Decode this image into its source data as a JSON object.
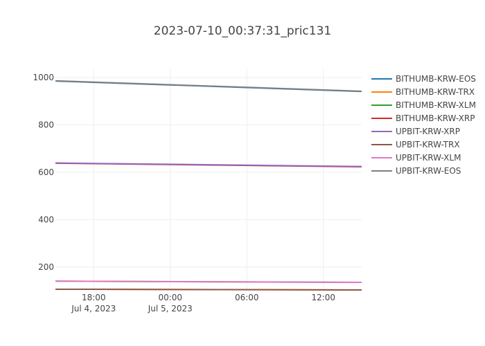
{
  "chart_data": {
    "type": "line",
    "title": "2023-07-10_00:37:31_pric131",
    "xlabel": "",
    "ylabel": "",
    "x_time": [
      "Jul 4, 2023 15:00",
      "Jul 5, 2023 15:00"
    ],
    "x_hours_range": [
      15,
      39
    ],
    "x_ticks": [
      {
        "hour": 18,
        "label": "18:00",
        "sublabel": "Jul 4, 2023"
      },
      {
        "hour": 24,
        "label": "00:00",
        "sublabel": "Jul 5, 2023"
      },
      {
        "hour": 30,
        "label": "06:00",
        "sublabel": ""
      },
      {
        "hour": 36,
        "label": "12:00",
        "sublabel": ""
      }
    ],
    "ylim": [
      100,
      1035
    ],
    "y_ticks": [
      200,
      400,
      600,
      800,
      1000
    ],
    "grid": true,
    "legend_position": "right",
    "series": [
      {
        "name": "BITHUMB-KRW-EOS",
        "color": "#1f77b4",
        "values": [
          985,
          941
        ]
      },
      {
        "name": "BITHUMB-KRW-TRX",
        "color": "#ff7f0e",
        "values": [
          106,
          103
        ]
      },
      {
        "name": "BITHUMB-KRW-XLM",
        "color": "#2ca02c",
        "values": [
          140,
          135
        ]
      },
      {
        "name": "BITHUMB-KRW-XRP",
        "color": "#d62728",
        "values": [
          638,
          623
        ]
      },
      {
        "name": "UPBIT-KRW-XRP",
        "color": "#9467bd",
        "values": [
          639,
          624
        ]
      },
      {
        "name": "UPBIT-KRW-TRX",
        "color": "#8c564b",
        "values": [
          106,
          103
        ]
      },
      {
        "name": "UPBIT-KRW-XLM",
        "color": "#e377c2",
        "values": [
          140,
          135
        ]
      },
      {
        "name": "UPBIT-KRW-EOS",
        "color": "#7f7f7f",
        "values": [
          986,
          942
        ]
      }
    ]
  }
}
